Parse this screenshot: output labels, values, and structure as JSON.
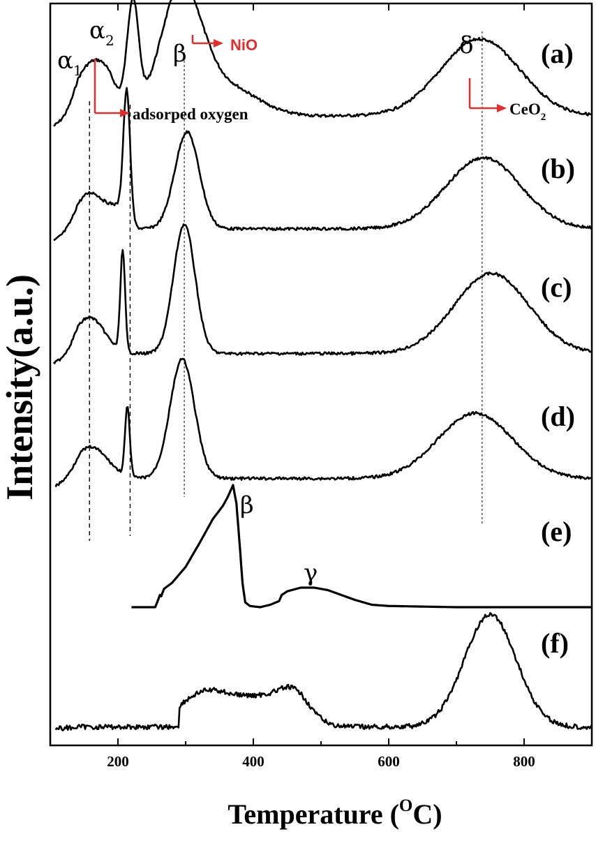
{
  "chart_data": {
    "type": "line",
    "title": "",
    "xlabel": "Temperature (",
    "xlabel_sup": "O",
    "xlabel_tail": "C)",
    "ylabel": "Intensity(a.u.)",
    "xlim": [
      100,
      900
    ],
    "xticks": [
      200,
      400,
      600,
      800
    ],
    "yticks": [],
    "grid": false,
    "series": [
      {
        "label": "(a)",
        "peaks": [
          {
            "x": 158,
            "h": 0.37,
            "w": 22
          },
          {
            "x": 186,
            "h": 0.18,
            "w": 15
          },
          {
            "x": 222,
            "h": 0.82,
            "w": 8.5
          },
          {
            "x": 293,
            "h": 0.93,
            "w": 30
          },
          {
            "x": 360,
            "h": 0.22,
            "w": 45
          },
          {
            "x": 735,
            "h": 0.58,
            "w": 58
          }
        ],
        "baseline": 0.1
      },
      {
        "label": "(b)",
        "peaks": [
          {
            "x": 160,
            "h": 0.28,
            "w": 22
          },
          {
            "x": 200,
            "h": 0.12,
            "w": 12
          },
          {
            "x": 213,
            "h": 1.0,
            "w": 5
          },
          {
            "x": 302,
            "h": 0.75,
            "w": 18
          },
          {
            "x": 740,
            "h": 0.55,
            "w": 55
          }
        ],
        "baseline": 0.12
      },
      {
        "label": "(c)",
        "peaks": [
          {
            "x": 158,
            "h": 0.28,
            "w": 22
          },
          {
            "x": 207,
            "h": 0.78,
            "w": 3.5
          },
          {
            "x": 298,
            "h": 1.0,
            "w": 16
          },
          {
            "x": 752,
            "h": 0.62,
            "w": 55
          }
        ],
        "baseline": 0.1
      },
      {
        "label": "(d)",
        "peaks": [
          {
            "x": 160,
            "h": 0.25,
            "w": 25
          },
          {
            "x": 214,
            "h": 0.55,
            "w": 3.5
          },
          {
            "x": 295,
            "h": 0.95,
            "w": 18
          },
          {
            "x": 728,
            "h": 0.52,
            "w": 55
          }
        ],
        "baseline": 0.08
      },
      {
        "label": "(e)",
        "points": [
          [
            220,
            0
          ],
          [
            255,
            0
          ],
          [
            258,
            0.04
          ],
          [
            262,
            0.1
          ],
          [
            264,
            0.09
          ],
          [
            268,
            0.15
          ],
          [
            280,
            0.2
          ],
          [
            300,
            0.33
          ],
          [
            320,
            0.52
          ],
          [
            340,
            0.72
          ],
          [
            355,
            0.83
          ],
          [
            362,
            0.9
          ],
          [
            370,
            1.0
          ],
          [
            375,
            0.85
          ],
          [
            380,
            0.5
          ],
          [
            384,
            0.2
          ],
          [
            388,
            0.04
          ],
          [
            395,
            0.01
          ],
          [
            410,
            0.0
          ],
          [
            425,
            0.02
          ],
          [
            438,
            0.05
          ],
          [
            442,
            0.1
          ],
          [
            450,
            0.13
          ],
          [
            470,
            0.16
          ],
          [
            490,
            0.16
          ],
          [
            510,
            0.14
          ],
          [
            530,
            0.1
          ],
          [
            550,
            0.06
          ],
          [
            575,
            0.02
          ],
          [
            600,
            0.01
          ],
          [
            650,
            0.005
          ],
          [
            700,
            0.0
          ],
          [
            900,
            0.0
          ]
        ]
      },
      {
        "label": "(f)",
        "peaks": [
          {
            "x": 330,
            "h": 0.28,
            "w": 40
          },
          {
            "x": 420,
            "h": 0.22,
            "w": 40
          },
          {
            "x": 462,
            "h": 0.18,
            "w": 22
          },
          {
            "x": 750,
            "h": 0.92,
            "w": 38
          }
        ],
        "baseline": 0.02,
        "start_x": 290
      }
    ],
    "reference_lines": [
      {
        "x": 158,
        "label": "α1"
      },
      {
        "x": 218,
        "label": "α2"
      },
      {
        "x": 298,
        "label": "β"
      },
      {
        "x": 738,
        "label": "δ"
      }
    ],
    "annotations": {
      "alpha1": "α",
      "alpha1_sub": "1",
      "alpha2": "α",
      "alpha2_sub": "2",
      "beta_top": "β",
      "nio": "NiO",
      "adsorbed": "adsorped oxygen",
      "delta": "δ",
      "ceo2": "CeO",
      "ceo2_sub": "2",
      "beta_e": "β",
      "gamma_e": "γ"
    },
    "colors": {
      "line": "#000000",
      "accent": "#e32c2c"
    }
  }
}
